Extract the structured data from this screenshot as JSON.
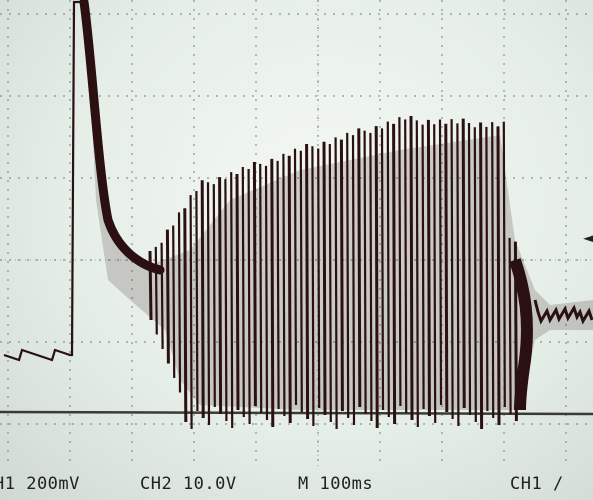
{
  "status_bar": {
    "ch1_scale": "H1 200mV",
    "ch2_scale": "CH2 10.0V",
    "timebase": "M 100ms",
    "trigger_source": "CH1 /"
  },
  "icons": {
    "trigger_level_marker": "arrow-left-icon"
  },
  "colors": {
    "screen_background": "#e6eee8",
    "trace": "#2a1010",
    "grid": "#6f7f76"
  }
}
